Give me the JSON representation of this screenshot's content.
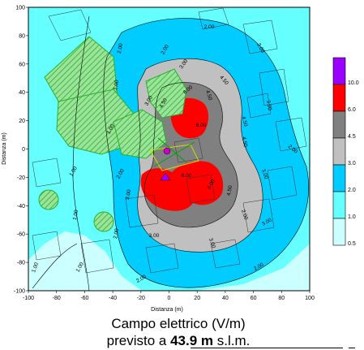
{
  "map": {
    "x_axis_title": "Distanza (m)",
    "y_axis_title": "Distanza (m)",
    "x_ticks": [
      "-100",
      "-80",
      "-60",
      "-40",
      "-20",
      "0",
      "20",
      "40",
      "60",
      "80",
      "100"
    ],
    "y_ticks": [
      "100",
      "80",
      "60",
      "40",
      "20",
      "0",
      "-20",
      "-40",
      "-60",
      "-80",
      "-100"
    ],
    "contour_labels": [
      "2.00",
      "2.00",
      "3.00",
      "3.00",
      "4.50",
      "4.50",
      "4.50",
      "4.50",
      "6.00",
      "6.00",
      "3.00",
      "2.00",
      "2.00",
      "1.00",
      "1.00",
      "1.00",
      "1.00",
      "3.00",
      "2.00",
      "4.50",
      "3.00",
      "6.00",
      "2.00",
      "3.00",
      "3.00",
      "2.00",
      "1.00",
      "1.00",
      "6.00",
      "2.00",
      "2.00",
      "3.00",
      "4.50",
      "2.00"
    ],
    "source_marker_color": "#cc00cc",
    "colors": {
      "band_0_5": "#ccffff",
      "band_1": "#66ffff",
      "band_2": "#00ccff",
      "band_3": "#c0c0c0",
      "band_4_5": "#808080",
      "band_6": "#ff0000",
      "band_10": "#9900ff",
      "building_hatch": "#2bb02b"
    }
  },
  "legend": {
    "entries": [
      {
        "label": "10.0",
        "color": "#9900ff"
      },
      {
        "label": "6.0",
        "color": "#ff0000"
      },
      {
        "label": "4.5",
        "color": "#808080"
      },
      {
        "label": "3.0",
        "color": "#c0c0c0"
      },
      {
        "label": "2.0",
        "color": "#00ccff"
      },
      {
        "label": "1.0",
        "color": "#66ffff"
      },
      {
        "label": "0.5",
        "color": "#ccffff"
      }
    ]
  },
  "caption": {
    "line1": "Campo elettrico (V/m)",
    "line2_prefix": "previsto a ",
    "line2_value": "43.9 m",
    "line2_suffix": " s.l.m."
  }
}
